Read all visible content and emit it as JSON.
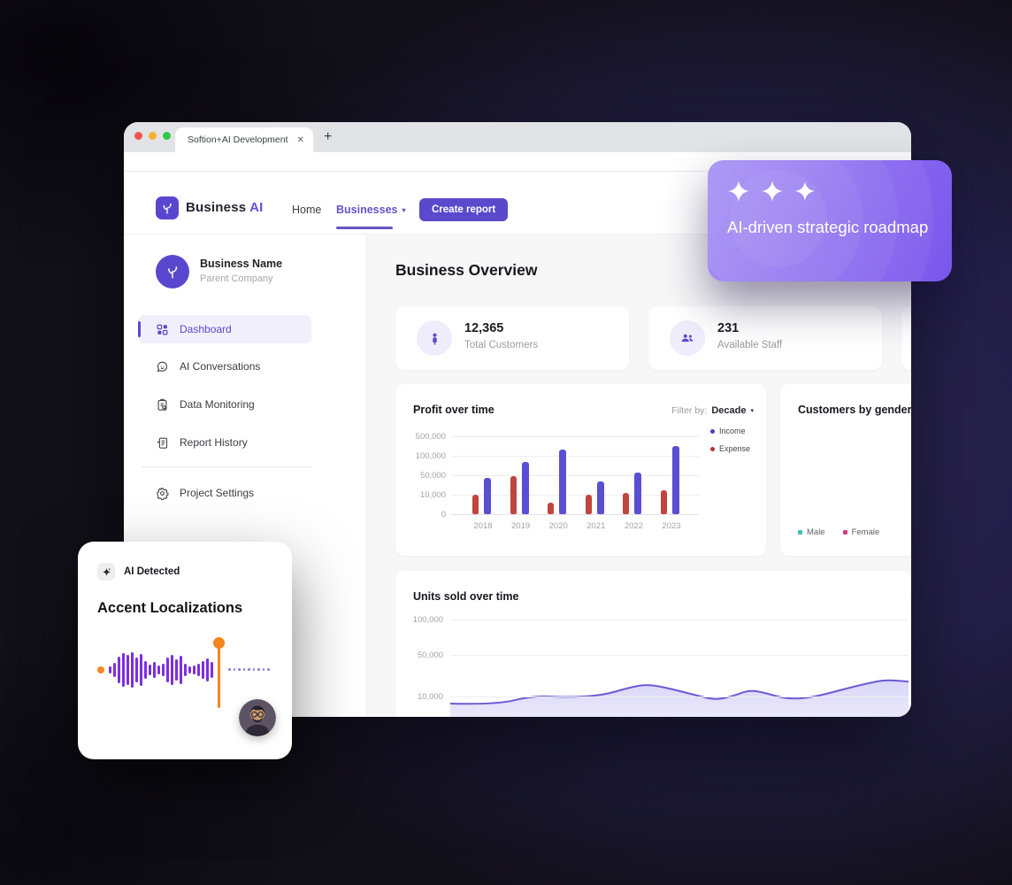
{
  "colors": {
    "accent_purple": "#5b49cc",
    "nav_purple": "#6254c8",
    "bar_income": "#5a4fd2",
    "bar_expense": "#c0453e",
    "legend_male": "#3bbfad",
    "legend_female": "#d6367f",
    "waveform_purple": "#7c2fe0",
    "playhead_orange": "#f5861f",
    "line_purple": "#6a5bd4"
  },
  "browser": {
    "tab_title": "Softion+AI Development",
    "close_glyph": "✕",
    "new_tab_glyph": "+"
  },
  "header": {
    "brand_name": "Business",
    "brand_accent": "AI",
    "nav": [
      {
        "label": "Home"
      },
      {
        "label": "Businesses",
        "caret": "▼"
      }
    ],
    "create_report": "Create report"
  },
  "sidebar": {
    "profile": {
      "name": "Business Name",
      "subtitle": "Parent Company"
    },
    "items": [
      {
        "label": "Dashboard"
      },
      {
        "label": "AI Conversations"
      },
      {
        "label": "Data Monitoring"
      },
      {
        "label": "Report History"
      },
      {
        "label": "Project Settings"
      }
    ]
  },
  "main": {
    "title": "Business Overview",
    "stats": [
      {
        "value": "12,365",
        "label": "Total Customers"
      },
      {
        "value": "231",
        "label": "Available Staff"
      }
    ],
    "profit_filter": {
      "prefix": "Filter by:",
      "value": "Decade",
      "caret": "▼"
    }
  },
  "chart_data": [
    {
      "type": "bar",
      "title": "Profit over time",
      "categories": [
        "2018",
        "2019",
        "2020",
        "2021",
        "2022",
        "2023"
      ],
      "series": [
        {
          "name": "Income",
          "color": "#5a4fd2",
          "values": [
            45000,
            85000,
            220000,
            37000,
            58000,
            300000
          ]
        },
        {
          "name": "Expense",
          "color": "#c0453e",
          "values": [
            10000,
            48000,
            6000,
            10000,
            13000,
            20000
          ]
        }
      ],
      "yticks": [
        {
          "label": "500,000",
          "value": 500000
        },
        {
          "label": "100,000",
          "value": 100000
        },
        {
          "label": "50,000",
          "value": 50000
        },
        {
          "label": "10,000",
          "value": 10000
        },
        {
          "label": "0",
          "value": 0
        }
      ],
      "ylim": [
        0,
        500000
      ],
      "scale": "equal spacing between ticks (non-linear)",
      "grid": true,
      "legend_position": "right"
    },
    {
      "type": "donut",
      "title": "Customers by gender",
      "legend": [
        {
          "label": "Male",
          "color": "#3bbfad"
        },
        {
          "label": "Female",
          "color": "#d6367f"
        }
      ],
      "legend_position": "bottom"
    },
    {
      "type": "area",
      "title": "Units sold over time",
      "yticks": [
        {
          "label": "100,000",
          "value": 100000
        },
        {
          "label": "50,000",
          "value": 50000
        },
        {
          "label": "10,000",
          "value": 10000
        }
      ],
      "scale": "equal-ish spacing between ticks (non-linear)",
      "grid": true,
      "points": [
        {
          "x": 0.0,
          "y": 3200
        },
        {
          "x": 0.1,
          "y": 2000
        },
        {
          "x": 0.18,
          "y": 10800
        },
        {
          "x": 0.25,
          "y": 9200
        },
        {
          "x": 0.33,
          "y": 10800
        },
        {
          "x": 0.39,
          "y": 18500
        },
        {
          "x": 0.43,
          "y": 21900
        },
        {
          "x": 0.48,
          "y": 17600
        },
        {
          "x": 0.54,
          "y": 10800
        },
        {
          "x": 0.58,
          "y": 6600
        },
        {
          "x": 0.62,
          "y": 10800
        },
        {
          "x": 0.65,
          "y": 16000
        },
        {
          "x": 0.68,
          "y": 14300
        },
        {
          "x": 0.735,
          "y": 7400
        },
        {
          "x": 0.79,
          "y": 9100
        },
        {
          "x": 0.85,
          "y": 16000
        },
        {
          "x": 0.91,
          "y": 22700
        },
        {
          "x": 0.95,
          "y": 26100
        },
        {
          "x": 1.0,
          "y": 24400
        }
      ]
    }
  ],
  "roadmap_card": {
    "title": "AI-driven strategic roadmap"
  },
  "accent_card": {
    "badge_label": "AI Detected",
    "title": "Accent Localizations",
    "waveform_bars": [
      8,
      16,
      30,
      38,
      34,
      40,
      28,
      36,
      20,
      12,
      18,
      10,
      14,
      28,
      34,
      24,
      32,
      14,
      8,
      10,
      14,
      20,
      26,
      18
    ]
  }
}
